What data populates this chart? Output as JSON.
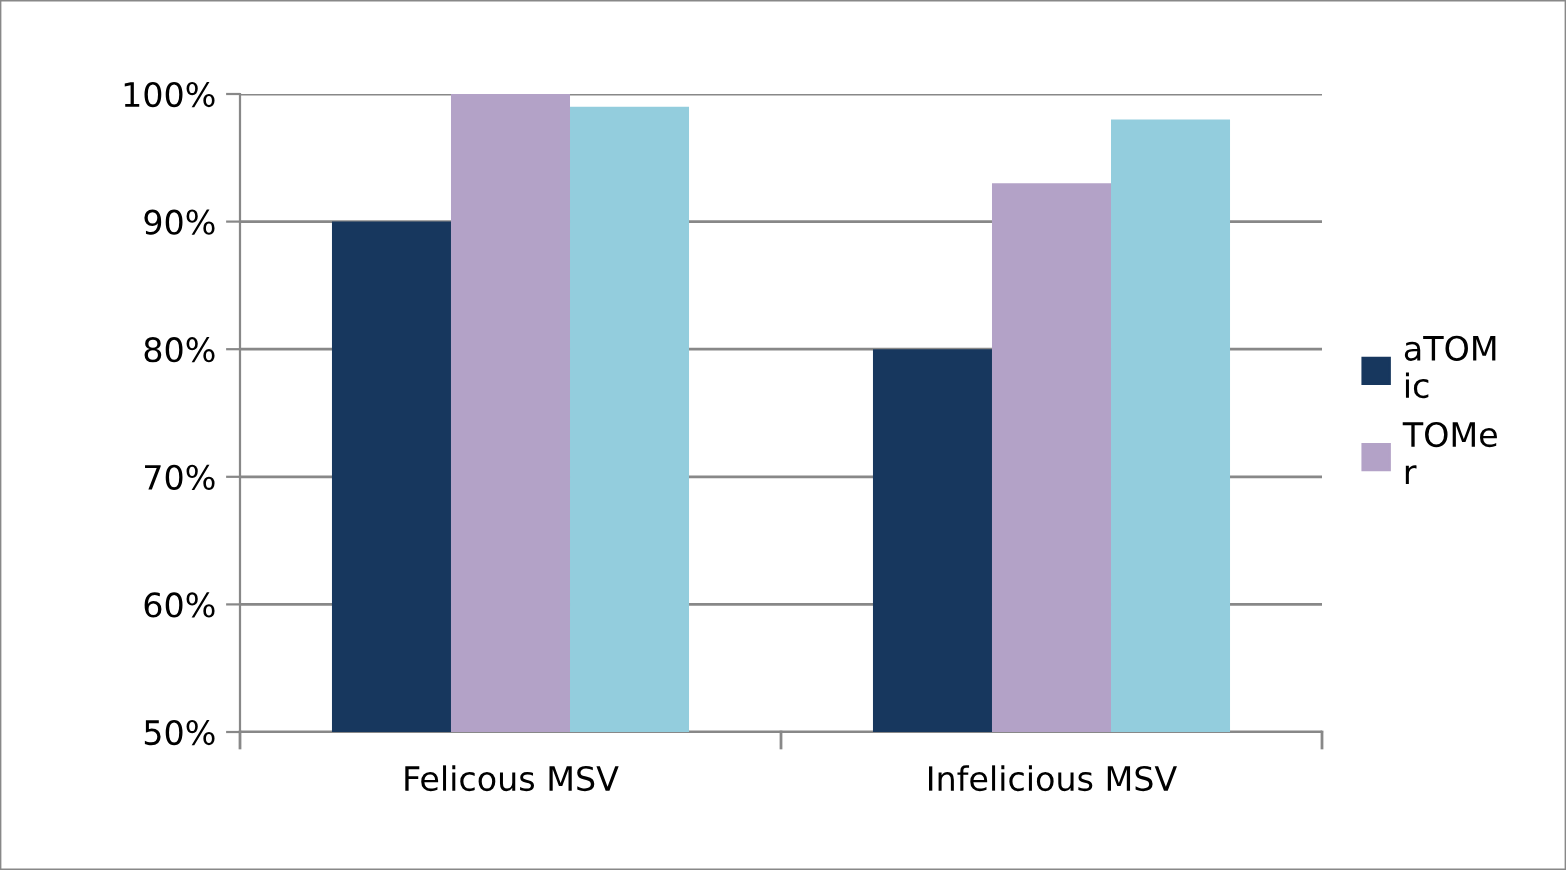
{
  "chart_data": {
    "type": "bar",
    "categories": [
      "Felicous MSV",
      "Infelicious MSV"
    ],
    "series": [
      {
        "name": "aTOMic",
        "color": "#17375e",
        "values": [
          90,
          80
        ]
      },
      {
        "name": "TOMer",
        "color": "#b3a2c7",
        "values": [
          100,
          93
        ]
      },
      {
        "color": "#93cddd",
        "values": [
          99,
          98
        ]
      }
    ],
    "ylim": [
      50,
      100
    ],
    "yticks": [
      {
        "value": 50,
        "label": "50%"
      },
      {
        "value": 60,
        "label": "60%"
      },
      {
        "value": 70,
        "label": "70%"
      },
      {
        "value": 80,
        "label": "80%"
      },
      {
        "value": 90,
        "label": "90%"
      },
      {
        "value": 100,
        "label": "100%"
      }
    ],
    "grid": "y",
    "legend": "right"
  }
}
